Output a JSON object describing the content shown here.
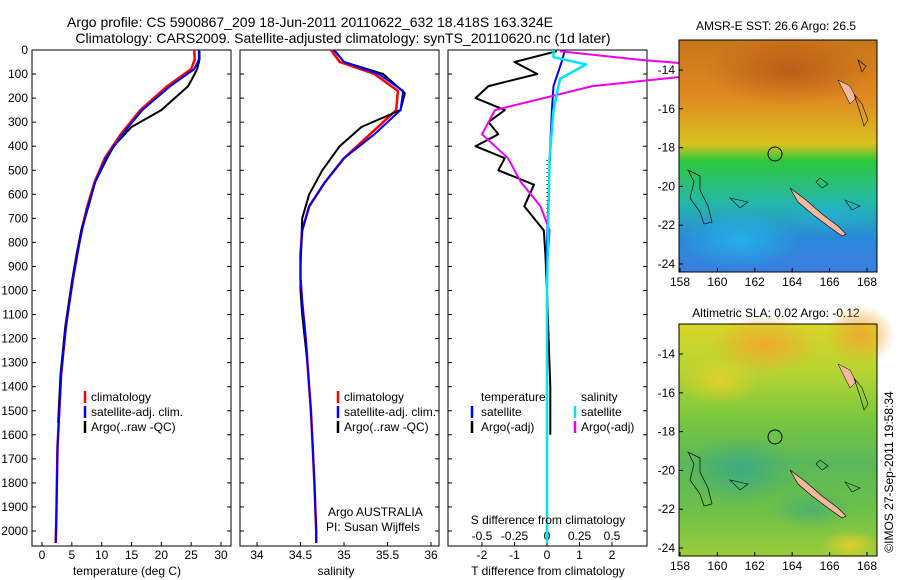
{
  "title_line1": "Argo profile: CS 5900867_209 18-Jun-2011 20110622_632 18.418S 163.324E",
  "title_line2": "Climatology: CARS2009. Satellite-adjusted climatology: synTS_20110620.nc (1d later)",
  "credit": "©IMOS 27-Sep-2011 19:58:34",
  "colors": {
    "climatology": "#ff0000",
    "satellite": "#0000ff",
    "argo": "#000000",
    "sal_sat": "#00e5ee",
    "sal_argo": "#ee00ee",
    "land": "#f2b8a0"
  },
  "depth_ticks": [
    "0",
    "100",
    "200",
    "300",
    "400",
    "500",
    "600",
    "700",
    "800",
    "900",
    "1000",
    "1100",
    "1200",
    "1300",
    "1400",
    "1500",
    "1600",
    "1700",
    "1800",
    "1900",
    "2000"
  ],
  "temp_panel": {
    "xlabel": "temperature (deg C)",
    "x_ticks": [
      "0",
      "5",
      "10",
      "15",
      "20",
      "25",
      "30"
    ],
    "legend": [
      "climatology",
      "satellite-adj. clim.",
      "Argo(..raw -QC)"
    ]
  },
  "sal_panel": {
    "xlabel": "salinity",
    "x_ticks": [
      "34",
      "34.5",
      "35",
      "35.5",
      "36"
    ],
    "legend": [
      "climatology",
      "satellite-adj. clim.",
      "Argo(..raw -QC)"
    ],
    "note1": "Argo AUSTRALIA",
    "note2": "PI: Susan Wijffels"
  },
  "diff_panel": {
    "xlabel": "T difference from climatology",
    "s_label": "S difference from climatology",
    "t_ticks": [
      "-2",
      "-1",
      "0",
      "1",
      "2"
    ],
    "s_ticks": [
      "-0.5",
      "-0.25",
      "0",
      "0.25",
      "0.5"
    ],
    "legend_temp_title": "temperature",
    "legend_sal_title": "salinity",
    "legend_temp": [
      "satellite",
      "Argo(-adj)"
    ],
    "legend_sal": [
      "satellite",
      "Argo(-adj)"
    ]
  },
  "map_sst": {
    "title": "AMSR-E SST: 26.6 Argo: 26.5"
  },
  "map_sla": {
    "title": "Altimetric SLA: 0.02 Argo: -0.12"
  },
  "map_x_ticks": [
    "158",
    "160",
    "162",
    "164",
    "166",
    "168"
  ],
  "map_y_ticks": [
    "-14",
    "-16",
    "-18",
    "-20",
    "-22",
    "-24"
  ],
  "chart_data": [
    {
      "type": "line",
      "title": "",
      "xlabel": "temperature (deg C)",
      "ylabel": "",
      "xlim": [
        -2,
        31
      ],
      "ylim": [
        2070,
        0
      ],
      "series": [
        {
          "name": "climatology",
          "x": [
            25.5,
            25.6,
            25.0,
            21.0,
            16.5,
            13.2,
            10.5,
            8.8,
            7.6,
            6.6,
            5.9,
            5.2,
            4.6,
            4.0,
            3.6,
            3.2,
            3.0,
            2.8,
            2.6,
            2.5,
            2.4,
            2.3
          ],
          "y": [
            0,
            40,
            80,
            150,
            250,
            350,
            450,
            550,
            650,
            750,
            850,
            950,
            1050,
            1150,
            1250,
            1350,
            1450,
            1550,
            1650,
            1800,
            1950,
            2050
          ]
        },
        {
          "name": "satellite-adj. clim.",
          "x": [
            26.3,
            26.3,
            25.5,
            21.5,
            16.8,
            13.5,
            10.7,
            8.9,
            7.7,
            6.7,
            5.9,
            5.2,
            4.6,
            4.0,
            3.6,
            3.2,
            3.0,
            2.8,
            2.6,
            2.5,
            2.4,
            2.3
          ],
          "y": [
            0,
            40,
            80,
            150,
            250,
            350,
            450,
            550,
            650,
            750,
            850,
            950,
            1050,
            1150,
            1250,
            1350,
            1450,
            1550,
            1650,
            1800,
            1950,
            2050
          ]
        },
        {
          "name": "Argo(..raw -QC)",
          "x": [
            26.4,
            26.4,
            26.0,
            24.5,
            20.0,
            15.0,
            12.0,
            10.5,
            8.9,
            7.8,
            6.6,
            5.8,
            5.1,
            4.5,
            3.9,
            3.5,
            3.1,
            2.9,
            2.7
          ],
          "y": [
            5,
            40,
            80,
            150,
            250,
            320,
            400,
            470,
            550,
            650,
            750,
            850,
            950,
            1050,
            1150,
            1250,
            1350,
            1450,
            1550
          ]
        }
      ]
    },
    {
      "type": "line",
      "title": "",
      "xlabel": "salinity",
      "ylabel": "",
      "xlim": [
        33.75,
        36.25
      ],
      "ylim": [
        2070,
        0
      ],
      "series": [
        {
          "name": "climatology",
          "x": [
            34.85,
            34.95,
            35.35,
            35.62,
            35.6,
            35.3,
            35.0,
            34.78,
            34.6,
            34.52,
            34.5,
            34.5,
            34.52,
            34.56,
            34.59,
            34.62,
            34.64,
            34.66,
            34.67,
            34.68,
            34.68
          ],
          "y": [
            0,
            50,
            100,
            170,
            250,
            350,
            450,
            550,
            650,
            750,
            850,
            950,
            1050,
            1200,
            1350,
            1500,
            1650,
            1800,
            1900,
            2000,
            2050
          ]
        },
        {
          "name": "satellite-adj. clim.",
          "x": [
            34.88,
            35.0,
            35.4,
            35.68,
            35.65,
            35.35,
            35.0,
            34.78,
            34.6,
            34.52,
            34.5,
            34.5,
            34.52,
            34.56,
            34.59,
            34.62,
            34.64,
            34.66,
            34.67,
            34.68,
            34.68
          ],
          "y": [
            0,
            50,
            100,
            170,
            250,
            350,
            450,
            550,
            650,
            750,
            850,
            950,
            1050,
            1200,
            1350,
            1500,
            1650,
            1800,
            1900,
            2000,
            2050
          ]
        },
        {
          "name": "Argo(..raw -QC)",
          "x": [
            34.9,
            35.0,
            35.45,
            35.7,
            35.65,
            35.2,
            34.95,
            34.75,
            34.6,
            34.52,
            34.51,
            34.5,
            34.5,
            34.52,
            34.55,
            34.58
          ],
          "y": [
            5,
            50,
            100,
            180,
            250,
            320,
            400,
            500,
            600,
            700,
            800,
            900,
            1000,
            1100,
            1200,
            1300
          ]
        }
      ]
    },
    {
      "type": "line",
      "title": "",
      "xlabel": "T difference from climatology",
      "ylabel": "",
      "xlim": [
        -2.4,
        2.9
      ],
      "ylim": [
        2070,
        0
      ],
      "series": [
        {
          "name": "temperature satellite",
          "x": [
            0.55,
            0.45,
            0.2,
            0.15,
            0.1,
            0.05,
            0.0,
            0.0,
            0.0,
            0.0,
            0.0,
            0.0
          ],
          "y": [
            0,
            50,
            150,
            250,
            400,
            600,
            800,
            1000,
            1300,
            1600,
            1900,
            2050
          ]
        },
        {
          "name": "temperature Argo(-adj)",
          "x": [
            0.3,
            -1.0,
            -0.3,
            -1.8,
            -2.2,
            -1.3,
            -1.8,
            -1.5,
            -2.2,
            -1.3,
            -1.5,
            -0.4,
            -0.7,
            -0.1,
            -0.05,
            0.0,
            0.05,
            0.1,
            0.1
          ],
          "y": [
            5,
            50,
            100,
            150,
            200,
            250,
            300,
            350,
            400,
            450,
            500,
            560,
            650,
            750,
            850,
            1000,
            1200,
            1400,
            1600
          ]
        },
        {
          "name": "salinity satellite",
          "x": [
            0.05,
            0.05,
            0.3,
            0.1,
            0.05,
            0.02,
            0.01,
            0.0,
            0.0,
            0.0,
            0.0
          ],
          "y": [
            0,
            30,
            60,
            120,
            250,
            450,
            700,
            1000,
            1400,
            1800,
            2050
          ]
        },
        {
          "name": "salinity Argo(-adj)",
          "x": [
            0.1,
            0.7,
            1.6,
            0.35,
            -0.4,
            -0.5,
            -0.3,
            -0.2,
            -0.05,
            0.02,
            0.0,
            0.0
          ],
          "y": [
            5,
            40,
            80,
            150,
            250,
            350,
            450,
            550,
            650,
            750,
            900,
            1050
          ]
        }
      ]
    }
  ]
}
